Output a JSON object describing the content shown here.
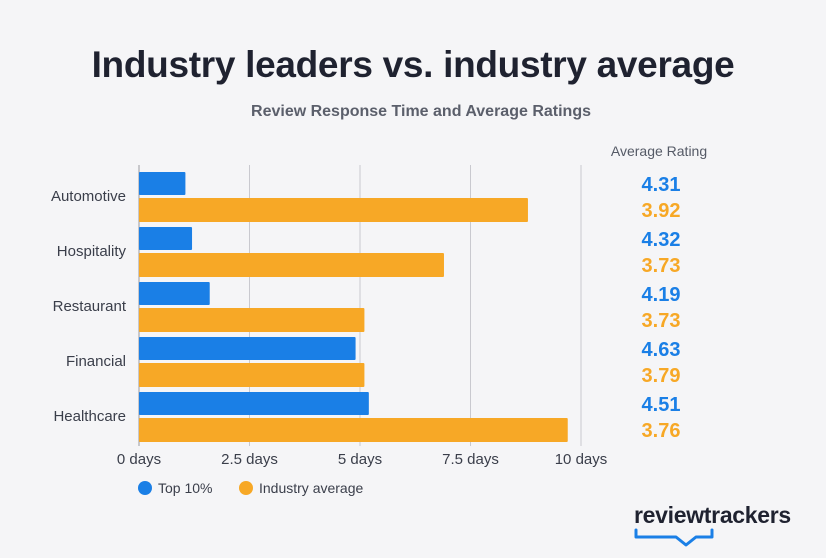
{
  "chart_data": {
    "type": "bar",
    "orientation": "horizontal",
    "title": "Industry leaders vs. industry average",
    "subtitle": "Review Response Time and Average Ratings",
    "categories": [
      "Automotive",
      "Hospitality",
      "Restaurant",
      "Financial",
      "Healthcare"
    ],
    "series": [
      {
        "name": "Top 10%",
        "color": "#1a7fe6",
        "values": [
          1.05,
          1.2,
          1.6,
          4.9,
          5.2
        ],
        "ratings": [
          "4.31",
          "4.32",
          "4.19",
          "4.63",
          "4.51"
        ]
      },
      {
        "name": "Industry average",
        "color": "#f7a826",
        "values": [
          8.8,
          6.9,
          5.1,
          5.1,
          9.7
        ],
        "ratings": [
          "3.92",
          "3.73",
          "3.73",
          "3.79",
          "3.76"
        ]
      }
    ],
    "xlim": [
      0,
      10
    ],
    "xticks": [
      0,
      2.5,
      5,
      7.5,
      10
    ],
    "xtick_labels": [
      "0 days",
      "2.5 days",
      "5 days",
      "7.5 days",
      "10 days"
    ],
    "grid": true,
    "legend_position": "bottom-left",
    "rating_header": "Average Rating"
  },
  "brand": {
    "logo_text": "reviewtrackers"
  },
  "colors": {
    "grid": "#c9c9cf",
    "text": "#3a3e4a",
    "logo_accent": "#1a7fe6"
  }
}
